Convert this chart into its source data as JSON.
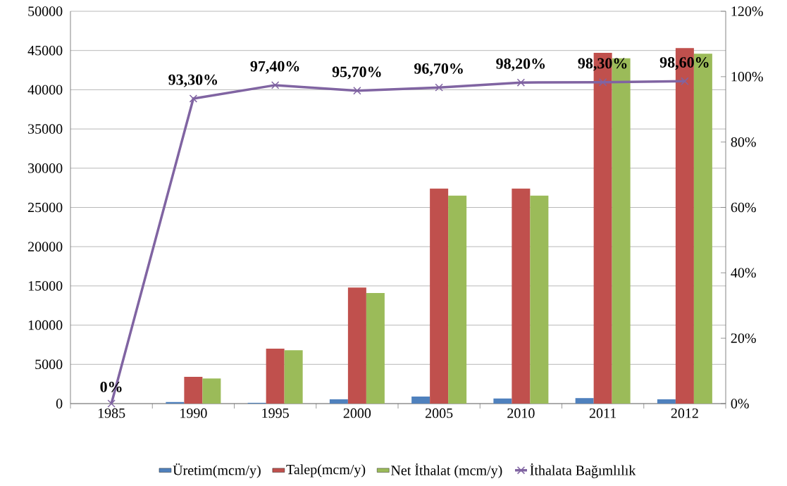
{
  "chart_data": {
    "type": "bar",
    "categories": [
      "1985",
      "1990",
      "1995",
      "2000",
      "2005",
      "2010",
      "2011",
      "2012"
    ],
    "series": [
      {
        "name": "Üretim(mcm/y)",
        "color": "#4f81bd",
        "values": [
          0,
          200,
          100,
          550,
          900,
          650,
          700,
          550
        ]
      },
      {
        "name": "Talep(mcm/y)",
        "color": "#c0504d",
        "values": [
          0,
          3400,
          7000,
          14800,
          27400,
          27400,
          44700,
          45300
        ]
      },
      {
        "name": "Net İthalat (mcm/y)",
        "color": "#9bbb59",
        "values": [
          0,
          3200,
          6800,
          14100,
          26500,
          26500,
          44000,
          44600
        ]
      },
      {
        "name": "İthalata Bağımlılık",
        "type": "line",
        "axis": "y2",
        "color": "#8064a2",
        "marker": "cross",
        "values": [
          0,
          93.3,
          97.4,
          95.7,
          96.7,
          98.2,
          98.3,
          98.6
        ],
        "value_labels": [
          "0%",
          "93,30%",
          "97,40%",
          "95,70%",
          "96,70%",
          "98,20%",
          "98,30%",
          "98,60%"
        ]
      }
    ],
    "ylim": [
      0,
      50000
    ],
    "yticks": [
      0,
      5000,
      10000,
      15000,
      20000,
      25000,
      30000,
      35000,
      40000,
      45000,
      50000
    ],
    "y2lim": [
      0,
      120
    ],
    "y2ticks": [
      {
        "value": 0,
        "label": "0%"
      },
      {
        "value": 20,
        "label": "20%"
      },
      {
        "value": 40,
        "label": "40%"
      },
      {
        "value": 60,
        "label": "60%"
      },
      {
        "value": 80,
        "label": "80%"
      },
      {
        "value": 100,
        "label": "100%"
      },
      {
        "value": 120,
        "label": "120%"
      }
    ],
    "grid": "y",
    "legend": "bottom"
  }
}
